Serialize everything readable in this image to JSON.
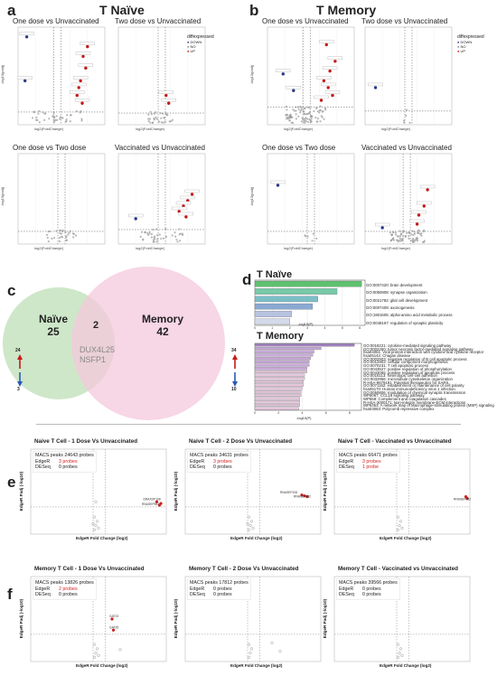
{
  "panel_a": {
    "letter": "a",
    "title": "T Naïve",
    "subplots": [
      {
        "title": "One dose vs Unvaccinated"
      },
      {
        "title": "Two dose vs Unvaccinated"
      },
      {
        "title": "One dose vs Two dose"
      },
      {
        "title": "Vaccinated vs Unvaccinated"
      }
    ],
    "xlabel": "log2(FoldChange)",
    "ylabel": "-log10(padj)",
    "legend_title": "diffexpressed",
    "legend_items": [
      {
        "label": "DOWN",
        "color": "#2a3a8a"
      },
      {
        "label": "NO",
        "color": "#888888"
      },
      {
        "label": "UP",
        "color": "#c41a1a"
      }
    ]
  },
  "panel_b": {
    "letter": "b",
    "title": "T Memory",
    "subplots": [
      {
        "title": "One dose vs Unvaccinated"
      },
      {
        "title": "Two dose vs Unvaccinated"
      },
      {
        "title": "One dose vs Two dose"
      },
      {
        "title": "Vaccinated vs Unvaccinated"
      }
    ],
    "xlabel": "log2(FoldChange)",
    "ylabel": "-log10(padj)",
    "legend_title": "diffexpressed",
    "legend_items": [
      {
        "label": "DOWN",
        "color": "#2a3a8a"
      },
      {
        "label": "NO",
        "color": "#888888"
      },
      {
        "label": "UP",
        "color": "#c41a1a"
      }
    ]
  },
  "panel_c": {
    "letter": "c",
    "naive_label": "Naïve",
    "naive_count": "25",
    "memory_label": "Memory",
    "memory_count": "42",
    "overlap_count": "2",
    "overlap_genes": [
      "DUX4L25",
      "NSFP1"
    ],
    "naive_up": "24",
    "naive_down": "3",
    "memory_up": "34",
    "memory_down": "10",
    "naive_color": "#c5e3c0",
    "memory_color": "#f4c8dc"
  },
  "panel_d": {
    "letter": "d",
    "naive_title": "T Naïve",
    "memory_title": "T Memory",
    "xlabel": "-log10(P)",
    "naive_terms": [
      "GO:0007420: brain development",
      "GO:0050808: synapse organization",
      "GO:0021782: glial cell development",
      "GO:0007409: axonogenesis",
      "GO:1901605: alpha-amino acid metabolic process",
      "GO:0048167: regulation of synaptic plasticity"
    ],
    "naive_ticks": [
      "0",
      "1",
      "2",
      "3",
      "4",
      "5",
      "6"
    ],
    "memory_terms": [
      "GO:0019221: cytokine-mediated signaling pathway",
      "GO:0002250: tumor necrosis factor-mediated signaling pathway",
      "hsa04061: Viral protein interaction with cytokine and cytokine receptor",
      "hsa05142: Chagas disease",
      "GO:0002903: negative regulation of B cell apoptotic process",
      "GO:0012903: cellular component morphogenesis",
      "GO:0070231: T cell apoptotic process",
      "GO:0043527: positive regulation of phosphorylation",
      "GO:0043065: positive regulation of apoptotic process",
      "GO:0016113: heterotypic cell-cell adhesion",
      "GO:0032956: microtubule cytoskeleton organization",
      "R-HSA-9679191: Potential therapeutics for SARS",
      "GO:0071162: establishment or maintenance of cell polarity",
      "hsa05170: Human immunodeficiency virus 1 infection",
      "GO:0050806: modulation of chemical synaptic transmission",
      "WP5067: CCL18 signaling pathway",
      "WP558: Complement and coagulation cascades",
      "R-HSA-3000171: Non-integrin membrane-ECM interactions",
      "WP5353: A network map of Macrophage-stimulating protein (MSP) signaling",
      "hsa03083: Polycomb repressive complex"
    ],
    "memory_ticks": [
      "0",
      "2",
      "4",
      "6",
      "8"
    ],
    "chart_data": [
      {
        "type": "bar",
        "orientation": "horizontal",
        "title": "T Naïve",
        "xlabel": "-log10(P)",
        "xlim": [
          0,
          6.3
        ],
        "categories": [
          "GO:0007420: brain development",
          "GO:0050808: synapse organization",
          "GO:0021782: glial cell development",
          "GO:0007409: axonogenesis",
          "GO:1901605: alpha-amino acid metabolic process",
          "GO:0048167: regulation of synaptic plasticity"
        ],
        "values": [
          6.1,
          4.7,
          3.6,
          3.3,
          2.1,
          2.0
        ]
      },
      {
        "type": "bar",
        "orientation": "horizontal",
        "title": "T Memory",
        "xlabel": "-log10(P)",
        "xlim": [
          0,
          9
        ],
        "values": [
          8.4,
          5.6,
          5.0,
          4.9,
          4.7,
          4.6,
          4.6,
          4.4,
          4.4,
          4.2,
          4.2,
          4.1,
          4.1,
          4.0,
          3.9,
          3.9,
          3.8,
          3.8,
          3.8,
          3.7
        ]
      }
    ]
  },
  "panel_e": {
    "letter": "e",
    "plots": [
      {
        "title": "Naive T Cell - 1 Dose Vs Unvaccinated",
        "macs": "MACS peaks 24643 probes",
        "edger_label": "EdgeR",
        "edger_value": "3 probes",
        "deseq_label": "DESeq",
        "deseq_value": "0 probes",
        "edger_red": true,
        "deseq_red": false,
        "labels": [
          "DRAXDP108",
          "RNASEP982"
        ]
      },
      {
        "title": "Naive T Cell - 2 Dose Vs Unvaccinated",
        "macs": "MACS peaks 34631 probes",
        "edger_label": "EdgeR",
        "edger_value": "3 probes",
        "deseq_label": "DESeq",
        "deseq_value": "0 probes",
        "edger_red": true,
        "deseq_red": false,
        "labels": [
          "RNASEP108",
          "RNASEP982"
        ]
      },
      {
        "title": "Naive T Cell - Vaccinated vs Unvaccinated",
        "macs": "MACS peaks 66471 probes",
        "edger_label": "EdgeR",
        "edger_value": "3 probes",
        "deseq_label": "DESeq",
        "deseq_value": "1 probe",
        "edger_red": true,
        "deseq_red": true,
        "labels": [
          "RNASEP982"
        ]
      }
    ],
    "xlabel": "EdgeR Fold Change (log2)",
    "ylabel": "EdgeR Padj (-log10)"
  },
  "panel_f": {
    "letter": "f",
    "plots": [
      {
        "title": "Memory T Cell - 1 Dose Vs Unvaccinated",
        "macs": "MACS peaks 13826 probes",
        "edger_label": "EdgeR",
        "edger_value": "2 probes",
        "deseq_label": "DESeq",
        "deseq_value": "0 probes",
        "edger_red": true,
        "deseq_red": false,
        "labels": [
          "GAT23",
          "GAT25"
        ]
      },
      {
        "title": "Memory T Cell - 2 Dose Vs Unvaccinated",
        "macs": "MACS peaks 17812 probes",
        "edger_label": "EdgeR",
        "edger_value": "0 probes",
        "deseq_label": "DESeq",
        "deseq_value": "0 probes",
        "edger_red": false,
        "deseq_red": false,
        "labels": []
      },
      {
        "title": "Memory T Cell - Vaccinated vs Unvaccinated",
        "macs": "MACS peaks 39566 probes",
        "edger_label": "EdgeR",
        "edger_value": "0 probes",
        "deseq_label": "DESeq",
        "deseq_value": "0 probes",
        "edger_red": false,
        "deseq_red": false,
        "labels": []
      }
    ],
    "xlabel": "EdgeR Fold Change (log2)",
    "ylabel": "EdgeR Padj (-log10)"
  }
}
